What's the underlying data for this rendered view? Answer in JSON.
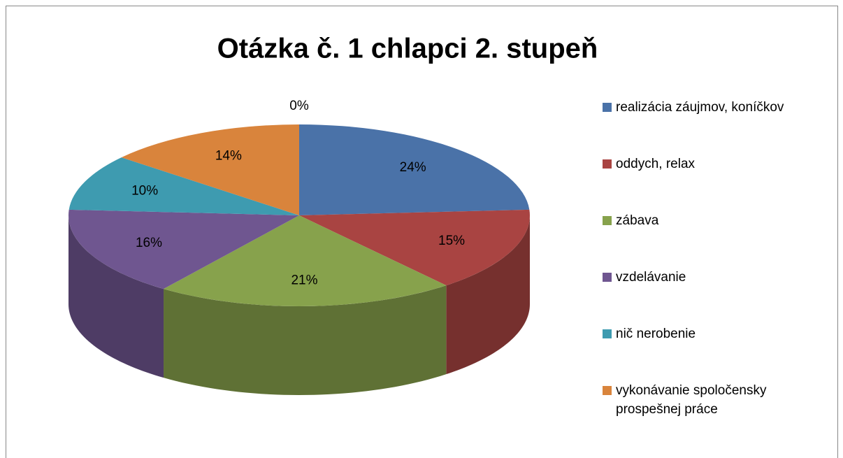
{
  "chart_data": {
    "type": "pie",
    "title": "Otázka č. 1 chlapci 2. stupeň",
    "categories": [
      "realizácia záujmov, koníčkov",
      "oddych, relax",
      "zábava",
      "vzdelávanie",
      "nič nerobenie",
      "vykonávanie spoločensky prospešnej práce",
      null
    ],
    "values": [
      24,
      15,
      21,
      16,
      10,
      14,
      0
    ],
    "value_labels": [
      "24%",
      "15%",
      "21%",
      "16%",
      "10%",
      "14%",
      "0%"
    ],
    "colors": [
      "#4a72a8",
      "#a94442",
      "#87a24c",
      "#6f5690",
      "#3e9bb0",
      "#d9843c",
      "#9cb7de"
    ],
    "legend": "right"
  }
}
